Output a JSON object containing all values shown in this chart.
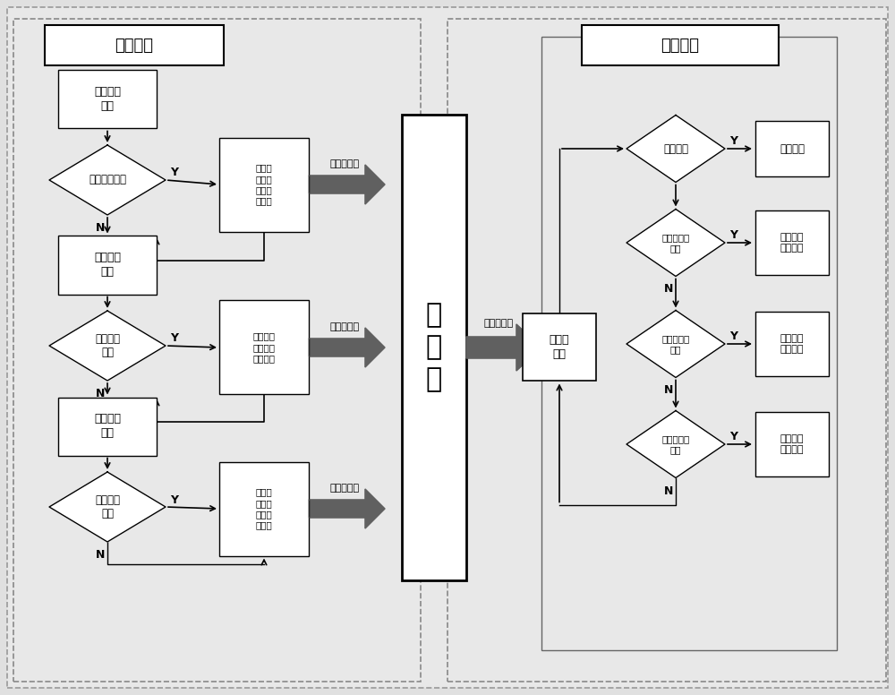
{
  "bg": "#e8e8e8",
  "panel_bg": "#e8e8e8",
  "white": "#ffffff",
  "left_title": "故障小棁",
  "right_title": "故障处理",
  "db_text": "数\n据\n库",
  "b1_text": "刀盘系统\n小棁",
  "b3_text": "液压系统\n小棁",
  "b5_text": "电控系统\n小棁",
  "d1_text": "刀盘系统故障",
  "d2_text": "液压系统\n故障",
  "d3_text": "电控系统\n故障",
  "r1_text": "数据库\n记录刀\n盘系统\n故障号",
  "r2_text": "数据库记\n录液压系\n统故障号",
  "r3_text": "数据库\n记录电\n控系统\n故障号",
  "store_text": "数据库存储",
  "read_text": "数据库读取",
  "fr_text": "故障号\n读取",
  "rd1_text": "无故障号",
  "rd2_text": "刀盘系统故\n障号",
  "rd3_text": "液压系统故\n障号",
  "rd4_text": "电控系统故\n障号",
  "rb1_text": "正常工作",
  "rb2_text": "刀盘系统\n故障处理",
  "rb3_text": "液压系统\n故障处理",
  "rb4_text": "电控系统\n故障处理",
  "Y_label": "Y",
  "N_label": "N"
}
